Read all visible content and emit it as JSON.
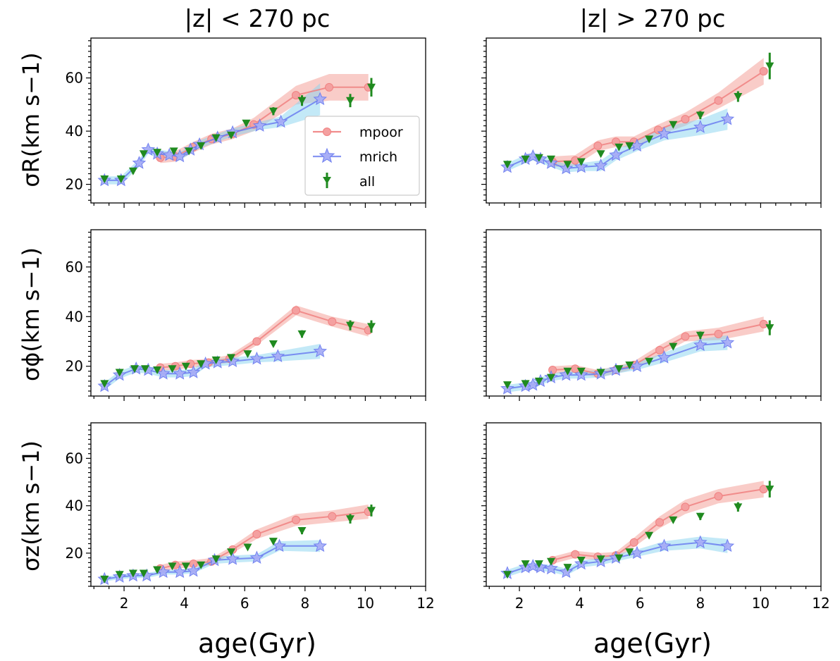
{
  "figure": {
    "col_titles": [
      "|z| < 270 pc",
      "|z| > 270 pc"
    ],
    "ylabels": [
      "σR(km s−1)",
      "σϕ(km s−1)",
      "σz(km s−1)"
    ],
    "xlabel": "age(Gyr)",
    "legend": [
      "mpoor",
      "mrich",
      "all"
    ],
    "colors": {
      "mpoor": "#f08080",
      "mpoor_band": "#f4a39a",
      "mrich": "#6b7cf0",
      "mrich_band": "#87d3f0",
      "all": "#1f8a1f"
    }
  },
  "chart_data": [
    {
      "type": "line",
      "row": 0,
      "col": 0,
      "title": "|z| < 270 pc",
      "xlabel": "",
      "ylabel": "σR(km s−1)",
      "xlim": [
        0.9,
        12
      ],
      "ylim": [
        13,
        75
      ],
      "xticks": [
        2,
        4,
        6,
        8,
        10,
        12
      ],
      "yticks": [
        20,
        40,
        60
      ],
      "legend": "center-right",
      "series": [
        {
          "name": "mpoor",
          "x": [
            3.2,
            3.7,
            4.3,
            4.9,
            5.6,
            6.3,
            7.7,
            8.8,
            10.1
          ],
          "y": [
            30,
            30.5,
            34,
            37,
            39,
            42.5,
            53.5,
            56.5,
            56.5
          ],
          "err": [
            2,
            2,
            2,
            2,
            2,
            2.5,
            3.5,
            5,
            5
          ]
        },
        {
          "name": "mrich",
          "x": [
            1.35,
            1.9,
            2.5,
            2.8,
            3.1,
            3.5,
            3.85,
            4.2,
            4.5,
            5.1,
            5.6,
            6.5,
            7.2,
            8.5
          ],
          "y": [
            21.5,
            21.5,
            28,
            33,
            31.5,
            31,
            30.5,
            33,
            35,
            37.5,
            39.5,
            42,
            43.5,
            52
          ],
          "err": [
            1.5,
            1.5,
            1.5,
            1.5,
            1.5,
            1.5,
            1.5,
            1.5,
            1.5,
            1.5,
            1.5,
            1.5,
            2,
            6
          ]
        },
        {
          "name": "all",
          "x": [
            1.35,
            1.9,
            2.3,
            2.65,
            3.1,
            3.65,
            4.15,
            4.55,
            5.05,
            5.55,
            6.05,
            6.95,
            7.9,
            9.5,
            10.2
          ],
          "y": [
            22,
            22,
            25,
            31.5,
            32,
            32.5,
            32.5,
            34.5,
            37.5,
            38.5,
            43,
            47.5,
            51.5,
            51.5,
            56.5
          ],
          "err": [
            1,
            1,
            1,
            1,
            1,
            1,
            1,
            1,
            1,
            1,
            1,
            1.5,
            2,
            2.5,
            3.5
          ]
        }
      ]
    },
    {
      "type": "line",
      "row": 0,
      "col": 1,
      "title": "|z| > 270 pc",
      "xlabel": "",
      "ylabel": "",
      "xlim": [
        0.9,
        12
      ],
      "ylim": [
        13,
        75
      ],
      "xticks": [
        2,
        4,
        6,
        8,
        10,
        12
      ],
      "yticks": [
        20,
        40,
        60
      ],
      "series": [
        {
          "name": "mpoor",
          "x": [
            3.1,
            3.85,
            4.6,
            5.2,
            5.8,
            6.6,
            7.5,
            8.6,
            10.1
          ],
          "y": [
            28.5,
            29,
            34.5,
            36,
            36,
            40.5,
            44.5,
            51.5,
            62.5
          ],
          "err": [
            2,
            2,
            2,
            2,
            2,
            2,
            2.5,
            3,
            5
          ]
        },
        {
          "name": "mrich",
          "x": [
            1.6,
            2.2,
            2.45,
            2.7,
            3.05,
            3.55,
            4.05,
            4.7,
            5.2,
            5.9,
            6.8,
            8.0,
            8.9
          ],
          "y": [
            26.5,
            29.5,
            30.5,
            29.5,
            28,
            26,
            26.5,
            27,
            31,
            34.5,
            39,
            41.5,
            44.5
          ],
          "err": [
            1.5,
            1.5,
            1.5,
            1.5,
            1.5,
            1.5,
            1.5,
            2,
            2,
            2,
            2.5,
            3,
            4
          ]
        },
        {
          "name": "all",
          "x": [
            1.6,
            2.2,
            2.65,
            3.05,
            3.6,
            4.05,
            4.7,
            5.3,
            5.65,
            6.3,
            7.1,
            8.0,
            9.25,
            10.3
          ],
          "y": [
            27.5,
            29.5,
            30,
            29.5,
            27.5,
            28.5,
            31.5,
            34,
            34.5,
            37,
            42.5,
            46,
            53,
            64.5
          ],
          "err": [
            1,
            1,
            1,
            1,
            1,
            1,
            1,
            1,
            1,
            1,
            1,
            1.5,
            2,
            5
          ]
        }
      ]
    },
    {
      "type": "line",
      "row": 1,
      "col": 0,
      "title": "",
      "xlabel": "",
      "ylabel": "σϕ(km s−1)",
      "xlim": [
        0.9,
        12
      ],
      "ylim": [
        8,
        75
      ],
      "xticks": [
        2,
        4,
        6,
        8,
        10,
        12
      ],
      "yticks": [
        20,
        40,
        60
      ],
      "series": [
        {
          "name": "mpoor",
          "x": [
            3.2,
            3.7,
            4.2,
            4.8,
            5.5,
            6.4,
            7.7,
            8.9,
            10.1
          ],
          "y": [
            19.5,
            20,
            21,
            21.5,
            23,
            30,
            42.5,
            38,
            34.5
          ],
          "err": [
            1.5,
            1.5,
            1.5,
            1.5,
            1.5,
            1.5,
            2,
            2,
            2.5
          ]
        },
        {
          "name": "mrich",
          "x": [
            1.35,
            1.85,
            2.4,
            2.8,
            3.3,
            3.85,
            4.3,
            4.7,
            5.1,
            5.6,
            6.4,
            7.1,
            8.5
          ],
          "y": [
            12,
            16.5,
            19,
            18.5,
            17,
            17,
            17.5,
            21,
            21.5,
            22,
            23,
            24,
            26
          ],
          "err": [
            1.5,
            1.5,
            1.5,
            1.5,
            1.5,
            1.5,
            1.5,
            1.5,
            1.5,
            1.5,
            1.5,
            2,
            3
          ]
        },
        {
          "name": "all",
          "x": [
            1.35,
            1.85,
            2.35,
            2.7,
            3.1,
            3.6,
            4.05,
            4.55,
            5.05,
            5.55,
            6.1,
            6.95,
            7.9,
            9.5,
            10.2
          ],
          "y": [
            13,
            17.5,
            19,
            19,
            18.5,
            19,
            20,
            21,
            22.5,
            23.5,
            25,
            29,
            33,
            36.5,
            36
          ],
          "err": [
            1,
            1,
            1,
            1,
            1,
            1,
            1,
            1,
            1,
            1,
            1,
            1,
            1.5,
            2,
            2.5
          ]
        }
      ]
    },
    {
      "type": "line",
      "row": 1,
      "col": 1,
      "title": "",
      "xlabel": "",
      "ylabel": "",
      "xlim": [
        0.9,
        12
      ],
      "ylim": [
        8,
        75
      ],
      "xticks": [
        2,
        4,
        6,
        8,
        10,
        12
      ],
      "yticks": [
        20,
        40,
        60
      ],
      "series": [
        {
          "name": "mpoor",
          "x": [
            3.1,
            3.85,
            4.6,
            5.2,
            5.8,
            6.65,
            7.5,
            8.6,
            10.1
          ],
          "y": [
            18.5,
            19,
            17,
            18.5,
            20.5,
            26.5,
            32,
            33,
            37
          ],
          "err": [
            1.5,
            1.5,
            1.5,
            1.5,
            1.5,
            2,
            2,
            2.5,
            3
          ]
        },
        {
          "name": "mrich",
          "x": [
            1.6,
            2.2,
            2.45,
            2.7,
            3.05,
            3.55,
            4.05,
            4.7,
            5.2,
            5.9,
            6.8,
            8.0,
            8.9
          ],
          "y": [
            11,
            12,
            12.5,
            14,
            15.5,
            16.5,
            16.5,
            17,
            18.5,
            20,
            23.5,
            28.5,
            29.5
          ],
          "err": [
            1.5,
            1.5,
            1.5,
            1.5,
            1.5,
            1.5,
            1.5,
            1.5,
            1.5,
            1.5,
            2,
            2.5,
            3
          ]
        },
        {
          "name": "all",
          "x": [
            1.6,
            2.2,
            2.65,
            3.05,
            3.6,
            4.05,
            4.7,
            5.3,
            5.65,
            6.3,
            7.1,
            8.0,
            10.3
          ],
          "y": [
            12.5,
            13,
            14,
            15.5,
            18,
            18,
            17.5,
            19,
            20.5,
            22,
            28,
            32.5,
            35.5
          ],
          "err": [
            1,
            1,
            1,
            1,
            1,
            1,
            1,
            1,
            1,
            1,
            1,
            1.5,
            3
          ]
        }
      ]
    },
    {
      "type": "line",
      "row": 2,
      "col": 0,
      "title": "",
      "xlabel": "age(Gyr)",
      "ylabel": "σz(km s−1)",
      "xlim": [
        0.9,
        12
      ],
      "ylim": [
        6,
        75
      ],
      "xticks": [
        2,
        4,
        6,
        8,
        10,
        12
      ],
      "yticks": [
        20,
        40,
        60
      ],
      "series": [
        {
          "name": "mpoor",
          "x": [
            3.2,
            3.7,
            4.3,
            4.9,
            5.6,
            6.4,
            7.7,
            8.9,
            10.1
          ],
          "y": [
            13.5,
            15,
            15.5,
            16.5,
            21.5,
            28,
            34,
            35.5,
            37.5
          ],
          "err": [
            1.5,
            1.5,
            1.5,
            1.5,
            1.5,
            2,
            2.5,
            2.5,
            3
          ]
        },
        {
          "name": "mrich",
          "x": [
            1.35,
            1.85,
            2.3,
            2.75,
            3.3,
            3.85,
            4.3,
            5.0,
            5.6,
            6.4,
            7.15,
            8.5
          ],
          "y": [
            9,
            10,
            10.5,
            10.5,
            12,
            12,
            12.5,
            17,
            17.5,
            18,
            23,
            23
          ],
          "err": [
            1,
            1,
            1,
            1,
            1,
            1,
            1,
            1.5,
            1.5,
            1.5,
            2,
            2.5
          ]
        },
        {
          "name": "all",
          "x": [
            1.35,
            1.85,
            2.3,
            2.65,
            3.1,
            3.6,
            4.05,
            4.55,
            5.05,
            5.55,
            6.1,
            6.95,
            7.9,
            9.5,
            10.2
          ],
          "y": [
            9,
            11,
            11.5,
            11.5,
            13,
            14.5,
            14.5,
            15,
            17.5,
            20.5,
            22.5,
            25,
            29.5,
            34.5,
            38
          ],
          "err": [
            1,
            1,
            1,
            1,
            1,
            1,
            1,
            1,
            1,
            1,
            1,
            1,
            1.5,
            2,
            2.5
          ]
        }
      ]
    },
    {
      "type": "line",
      "row": 2,
      "col": 1,
      "title": "",
      "xlabel": "age(Gyr)",
      "ylabel": "",
      "xlim": [
        0.9,
        12
      ],
      "ylim": [
        6,
        75
      ],
      "xticks": [
        2,
        4,
        6,
        8,
        10,
        12
      ],
      "yticks": [
        20,
        40,
        60
      ],
      "series": [
        {
          "name": "mpoor",
          "x": [
            3.1,
            3.85,
            4.6,
            5.2,
            5.8,
            6.65,
            7.5,
            8.6,
            10.1
          ],
          "y": [
            17,
            19.5,
            18.5,
            19,
            24.5,
            33,
            39.5,
            44,
            47
          ],
          "err": [
            1.5,
            1.5,
            1.5,
            1.5,
            2,
            2.5,
            3,
            3,
            3.5
          ]
        },
        {
          "name": "mrich",
          "x": [
            1.6,
            2.2,
            2.45,
            2.7,
            3.05,
            3.55,
            4.05,
            4.7,
            5.2,
            5.9,
            6.8,
            8.0,
            8.9
          ],
          "y": [
            11.5,
            14,
            14.5,
            14,
            13.5,
            12,
            15.5,
            16.5,
            18,
            20,
            23,
            24.5,
            23
          ],
          "err": [
            1.5,
            1.5,
            1.5,
            1.5,
            1.5,
            1.5,
            1.5,
            1.5,
            1.5,
            1.5,
            2,
            2.5,
            3
          ]
        },
        {
          "name": "all",
          "x": [
            1.6,
            2.2,
            2.65,
            3.05,
            3.6,
            4.05,
            4.7,
            5.3,
            5.65,
            6.3,
            7.1,
            8.0,
            9.25,
            10.3
          ],
          "y": [
            11,
            15.5,
            15.5,
            16.5,
            14,
            17,
            17.5,
            18,
            20.5,
            27.5,
            34,
            35.5,
            39.5,
            47
          ],
          "err": [
            1,
            1,
            1,
            1,
            1,
            1,
            1,
            1,
            1,
            1,
            1,
            1.5,
            2,
            3.5
          ]
        }
      ]
    }
  ]
}
